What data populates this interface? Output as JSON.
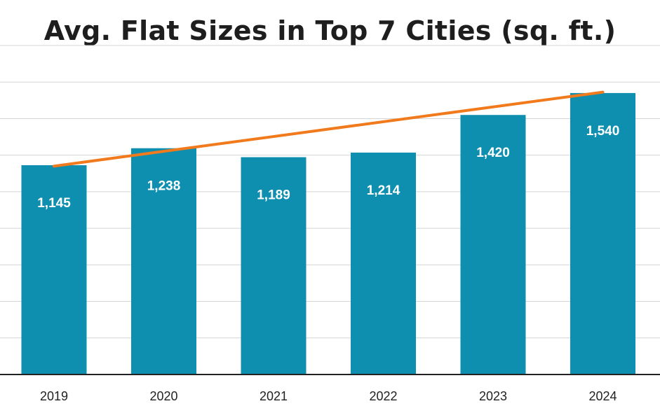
{
  "chart_data": {
    "type": "bar",
    "title": "Avg. Flat Sizes in Top 7 Cities (sq. ft.)",
    "categories": [
      "2019",
      "2020",
      "2021",
      "2022",
      "2023",
      "2024"
    ],
    "values": [
      1145,
      1238,
      1189,
      1214,
      1420,
      1540
    ],
    "data_labels": [
      "1,145",
      "1,238",
      "1,189",
      "1,214",
      "1,420",
      "1,540"
    ],
    "trendline": {
      "type": "linear",
      "start": 1140,
      "end": 1545
    },
    "xlabel": "",
    "ylabel": "",
    "ylim": [
      0,
      1800
    ],
    "grid": true,
    "legend": "none",
    "colors": {
      "bar": "#0f8fb0",
      "trendline": "#f07a1c"
    }
  }
}
